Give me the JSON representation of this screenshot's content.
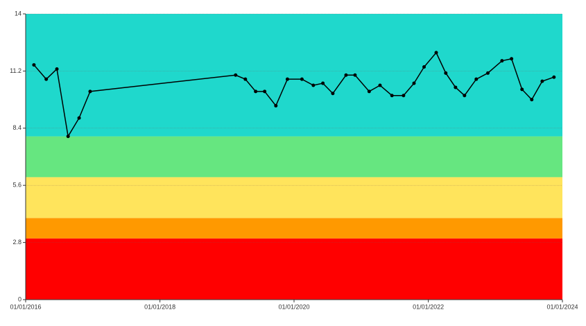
{
  "chart_data": {
    "type": "line",
    "x": [
      "2016-02-15",
      "2016-04-22",
      "2016-06-19",
      "2016-08-19",
      "2016-10-18",
      "2016-12-17",
      "2019-02-17",
      "2019-04-11",
      "2019-06-06",
      "2019-07-25",
      "2019-09-24",
      "2019-11-26",
      "2020-02-13",
      "2020-04-15",
      "2020-06-06",
      "2020-07-30",
      "2020-10-10",
      "2020-11-28",
      "2021-02-13",
      "2021-04-13",
      "2021-06-17",
      "2021-08-19",
      "2021-10-15",
      "2021-12-09",
      "2022-02-13",
      "2022-04-06",
      "2022-05-29",
      "2022-07-17",
      "2022-09-19",
      "2022-11-21",
      "2023-02-06",
      "2023-03-30",
      "2023-05-26",
      "2023-07-18",
      "2023-09-13",
      "2023-11-16"
    ],
    "values": [
      11.5,
      10.8,
      11.3,
      8.0,
      8.9,
      10.2,
      11.0,
      10.8,
      10.2,
      10.2,
      9.5,
      10.8,
      10.8,
      10.5,
      10.6,
      10.1,
      11.0,
      11.0,
      10.2,
      10.5,
      10.0,
      10.0,
      10.6,
      11.4,
      12.1,
      11.1,
      10.4,
      10.0,
      10.8,
      11.1,
      11.7,
      11.8,
      10.3,
      9.8,
      10.7,
      10.9
    ],
    "color": "#000000",
    "xlim": [
      "2016-01-01",
      "2024-01-01"
    ],
    "xticks": [
      {
        "value": "2016-01-01",
        "label": "01/01/2016"
      },
      {
        "value": "2018-01-01",
        "label": "01/01/2018"
      },
      {
        "value": "2020-01-01",
        "label": "01/01/2020"
      },
      {
        "value": "2022-01-01",
        "label": "01/01/2022"
      },
      {
        "value": "2024-01-01",
        "label": "01/01/2024"
      }
    ],
    "ylim": [
      0,
      14
    ],
    "yticks": [
      0,
      2.8,
      5.6,
      8.4,
      11.2,
      14
    ],
    "grid": true,
    "bands": [
      {
        "from": 0,
        "to": 3,
        "color": "#ff0000"
      },
      {
        "from": 3,
        "to": 4,
        "color": "#ff9900"
      },
      {
        "from": 4,
        "to": 6,
        "color": "#ffe45c"
      },
      {
        "from": 6,
        "to": 8,
        "color": "#66e680"
      },
      {
        "from": 8,
        "to": 14,
        "color": "#1fd8cc"
      }
    ]
  }
}
